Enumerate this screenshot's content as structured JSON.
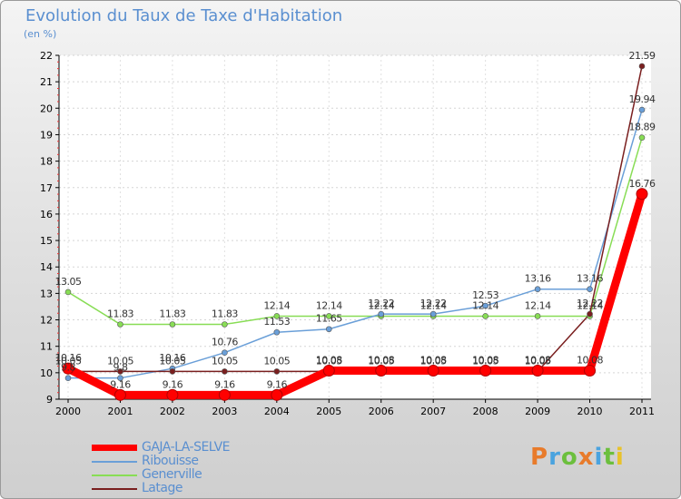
{
  "title": "Evolution du Taux de Taxe d'Habitation",
  "subtitle": "(en %)",
  "logo_text": "Proxiti",
  "chart_data": {
    "type": "line",
    "title": "Evolution du Taux de Taxe d'Habitation",
    "ylabel": "(en %)",
    "xlabel": "",
    "ylim": [
      9,
      22
    ],
    "yticks": [
      9,
      10,
      11,
      12,
      13,
      14,
      15,
      16,
      17,
      18,
      19,
      20,
      21,
      22
    ],
    "categories": [
      "2000",
      "2001",
      "2002",
      "2003",
      "2004",
      "2005",
      "2006",
      "2007",
      "2008",
      "2009",
      "2010",
      "2011"
    ],
    "series": [
      {
        "name": "GAJA-LA-SELVE",
        "color": "#ff0000",
        "values": [
          10.16,
          9.16,
          9.16,
          9.16,
          9.16,
          10.08,
          10.08,
          10.08,
          10.08,
          10.08,
          10.08,
          16.76
        ],
        "labels": [
          "10.16",
          "9.16",
          "9.16",
          "9.16",
          "9.16",
          "10.08",
          "10.08",
          "10.08",
          "10.08",
          "10.08",
          "10.08",
          "16.76"
        ]
      },
      {
        "name": "Ribouisse",
        "color": "#6a9fd8",
        "values": [
          9.8,
          9.8,
          10.16,
          10.76,
          11.53,
          11.65,
          12.22,
          12.22,
          12.53,
          13.16,
          13.16,
          19.94
        ],
        "labels": [
          "9.8",
          "9.8",
          "10.16",
          "10.76",
          "11.53",
          "11.65",
          "12.22",
          "12.22",
          "12.53",
          "13.16",
          "13.16",
          "19.94"
        ]
      },
      {
        "name": "Generville",
        "color": "#88dd55",
        "values": [
          13.05,
          11.83,
          11.83,
          11.83,
          12.14,
          12.14,
          12.14,
          12.14,
          12.14,
          12.14,
          12.14,
          18.89
        ],
        "labels": [
          "13.05",
          "11.83",
          "11.83",
          "11.83",
          "12.14",
          "12.14",
          "12.14",
          "12.14",
          "12.14",
          "12.14",
          "12.14",
          "18.89"
        ]
      },
      {
        "name": "Latage",
        "color": "#7a1f1f",
        "values": [
          10.05,
          10.05,
          10.05,
          10.05,
          10.05,
          10.05,
          10.05,
          10.05,
          10.05,
          10.05,
          12.22,
          21.59
        ],
        "labels": [
          "10.05",
          "10.05",
          "10.05",
          "10.05",
          "10.05",
          "10.05",
          "10.05",
          "10.05",
          "10.05",
          "10.05",
          "12.22",
          "21.59"
        ]
      }
    ]
  }
}
